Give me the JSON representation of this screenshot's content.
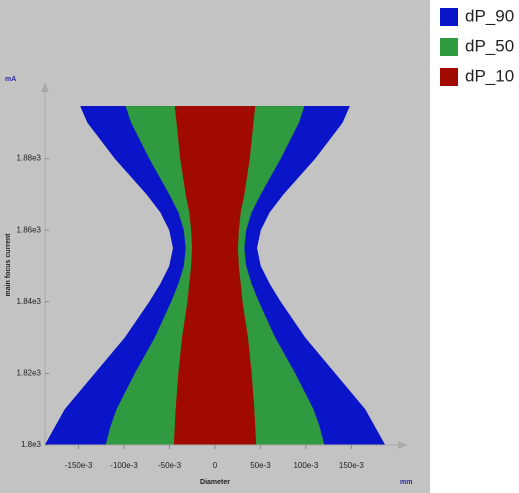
{
  "chart_data": {
    "type": "caustic",
    "y_label": "main focus current",
    "y_unit": "mA",
    "x_label": "Diameter",
    "x_unit": "mm",
    "x": [
      1800,
      1805,
      1810,
      1820,
      1830,
      1840,
      1845,
      1850,
      1855,
      1860,
      1865,
      1870,
      1880,
      1890,
      1894.6
    ],
    "series": [
      {
        "name": "dP_90",
        "color": "#0a14c8",
        "values": [
          0.187,
          0.176,
          0.165,
          0.132,
          0.099,
          0.072,
          0.06,
          0.05,
          0.046,
          0.05,
          0.06,
          0.075,
          0.11,
          0.14,
          0.148
        ]
      },
      {
        "name": "dP_50",
        "color": "#2f9a3f",
        "values": [
          0.12,
          0.115,
          0.108,
          0.088,
          0.066,
          0.048,
          0.04,
          0.034,
          0.032,
          0.034,
          0.04,
          0.05,
          0.072,
          0.092,
          0.098
        ]
      },
      {
        "name": "dP_10",
        "color": "#a00a00",
        "values": [
          0.045,
          0.044,
          0.043,
          0.04,
          0.036,
          0.03,
          0.028,
          0.026,
          0.025,
          0.026,
          0.028,
          0.032,
          0.038,
          0.042,
          0.044
        ]
      }
    ],
    "xlim": [
      -0.187,
      0.209
    ],
    "xticks": [
      {
        "value": -0.15,
        "label": "-150e-3"
      },
      {
        "value": -0.1,
        "label": "-100e-3"
      },
      {
        "value": -0.05,
        "label": "-50e-3"
      },
      0,
      {
        "value": 0.05,
        "label": "50e-3"
      },
      {
        "value": 0.1,
        "label": "100e-3"
      },
      {
        "value": 0.15,
        "label": "150e-3"
      }
    ],
    "ylim": [
      1800,
      1900
    ],
    "yticks": [
      {
        "value": 1800,
        "label": "1.8e3"
      },
      {
        "value": 1820,
        "label": "1.82e3"
      },
      {
        "value": 1840,
        "label": "1.84e3"
      },
      {
        "value": 1860,
        "label": "1.86e3"
      },
      {
        "value": 1880,
        "label": "1.88e3"
      }
    ]
  }
}
